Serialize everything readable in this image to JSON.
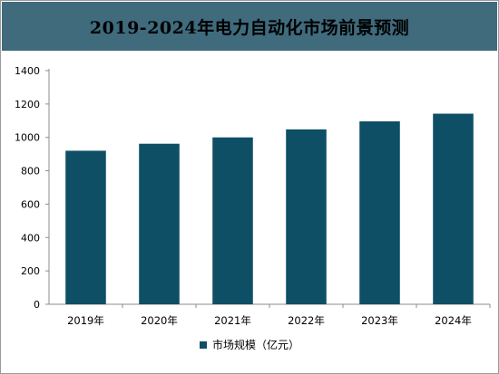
{
  "chart_data": {
    "type": "bar",
    "title": "2019-2024年电力自动化市场前景预测",
    "categories": [
      "2019年",
      "2020年",
      "2021年",
      "2022年",
      "2023年",
      "2024年"
    ],
    "series": [
      {
        "name": "市场规模（亿元）",
        "values": [
          920,
          962,
          1000,
          1048,
          1096,
          1142
        ]
      }
    ],
    "yticks": [
      0,
      200,
      400,
      600,
      800,
      1000,
      1200,
      1400
    ],
    "ylim": [
      0,
      1400
    ],
    "grid": false,
    "legend_position": "bottom",
    "colors": {
      "bar": "#0e4f66",
      "title_bg": "#3f6b7d"
    }
  }
}
